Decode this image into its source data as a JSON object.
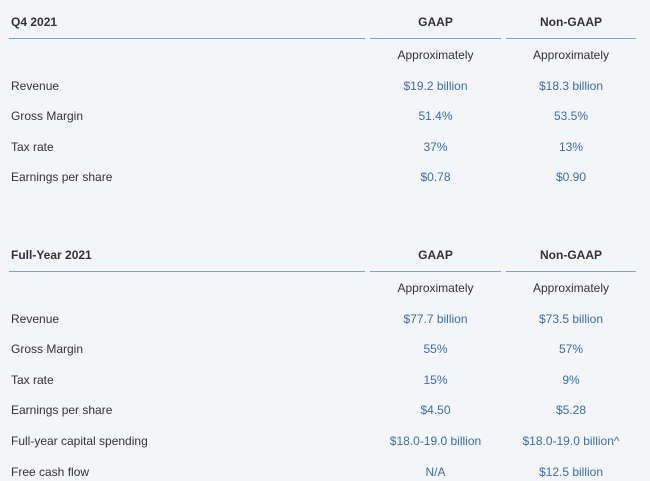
{
  "q4": {
    "header": {
      "label": "Q4 2021",
      "gaap": "GAAP",
      "non_gaap": "Non-GAAP"
    },
    "subheader": {
      "gaap": "Approximately",
      "non_gaap": "Approximately"
    },
    "rows": [
      {
        "label": "Revenue",
        "gaap": "$19.2 billion",
        "non_gaap": "$18.3 billion"
      },
      {
        "label": "Gross Margin",
        "gaap": "51.4%",
        "non_gaap": "53.5%"
      },
      {
        "label": "Tax rate",
        "gaap": "37%",
        "non_gaap": "13%"
      },
      {
        "label": "Earnings per share",
        "gaap": "$0.78",
        "non_gaap": "$0.90"
      }
    ]
  },
  "full_year": {
    "header": {
      "label": "Full-Year 2021",
      "gaap": "GAAP",
      "non_gaap": "Non-GAAP"
    },
    "subheader": {
      "gaap": "Approximately",
      "non_gaap": "Approximately"
    },
    "rows": [
      {
        "label": "Revenue",
        "gaap": "$77.7 billion",
        "non_gaap": "$73.5 billion"
      },
      {
        "label": "Gross Margin",
        "gaap": "55%",
        "non_gaap": "57%"
      },
      {
        "label": "Tax rate",
        "gaap": "15%",
        "non_gaap": "9%"
      },
      {
        "label": "Earnings per share",
        "gaap": "$4.50",
        "non_gaap": "$5.28"
      },
      {
        "label": "Full-year capital spending",
        "gaap": "$18.0-19.0 billion",
        "non_gaap": "$18.0-19.0 billion^"
      },
      {
        "label": "Free cash flow",
        "gaap": "N/A",
        "non_gaap": "$12.5 billion"
      }
    ]
  },
  "colors": {
    "background": "#f4f5f9",
    "header_rule": "#7fa3c6",
    "value_text": "#3a6ea8",
    "label_text": "#333333"
  }
}
